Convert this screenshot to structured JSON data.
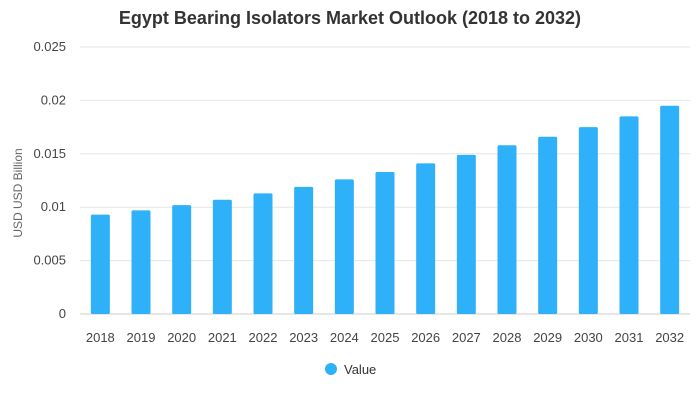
{
  "chart_data": {
    "type": "bar",
    "title": "Egypt Bearing Isolators Market Outlook (2018 to 2032)",
    "ylabel": "USD USD Billion",
    "xlabel": "",
    "categories": [
      "2018",
      "2019",
      "2020",
      "2021",
      "2022",
      "2023",
      "2024",
      "2025",
      "2026",
      "2027",
      "2028",
      "2029",
      "2030",
      "2031",
      "2032"
    ],
    "series": [
      {
        "name": "Value",
        "values": [
          0.0093,
          0.0097,
          0.0102,
          0.0107,
          0.0113,
          0.0119,
          0.0126,
          0.0133,
          0.0141,
          0.0149,
          0.0158,
          0.0166,
          0.0175,
          0.0185,
          0.0195
        ],
        "color": "#2eb1f8"
      }
    ],
    "ylim": [
      0,
      0.025
    ],
    "yticks": [
      "0",
      "0.005",
      "0.01",
      "0.015",
      "0.02",
      "0.025"
    ],
    "grid": true,
    "legend_position": "bottom-center"
  }
}
